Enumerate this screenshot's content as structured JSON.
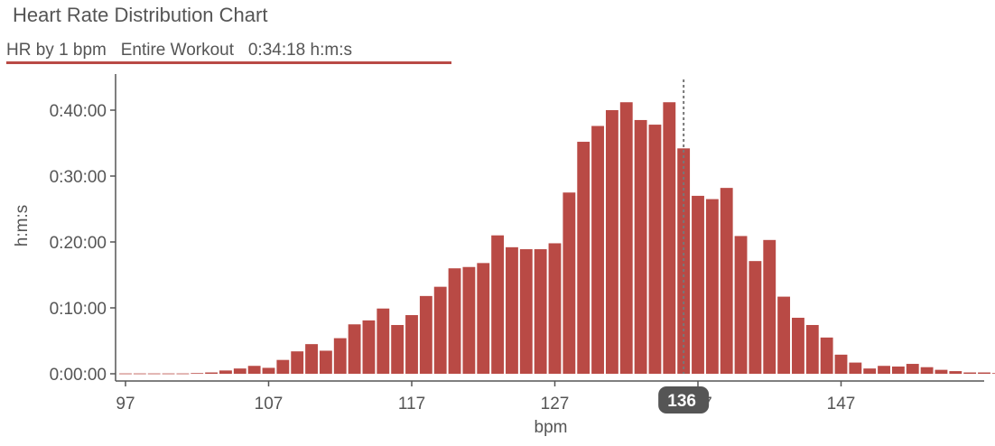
{
  "title": "Heart Rate Distribution Chart",
  "subtitle": "HR by 1 bpm   Entire Workout   0:34:18 h:m:s",
  "colors": {
    "bar": "#b94a45",
    "underline": "#b94a45",
    "axis": "#555555",
    "cursor_badge": "#555555"
  },
  "chart_data": {
    "type": "bar",
    "xlabel": "bpm",
    "ylabel": "h:m:s",
    "x_ticks": [
      "97",
      "107",
      "117",
      "127",
      "147"
    ],
    "y_ticks": [
      "0:00:00",
      "0:10:00",
      "0:20:00",
      "0:30:00",
      "0:40:00"
    ],
    "ylim_minutes": [
      0,
      45
    ],
    "bin_width_bpm": 1,
    "categories": [
      97,
      98,
      99,
      100,
      101,
      102,
      103,
      104,
      105,
      106,
      107,
      108,
      109,
      110,
      111,
      112,
      113,
      114,
      115,
      116,
      117,
      118,
      119,
      120,
      121,
      122,
      123,
      124,
      125,
      126,
      127,
      128,
      129,
      130,
      131,
      132,
      133,
      134,
      135,
      136,
      137,
      138,
      139,
      140,
      141,
      142,
      143,
      144,
      145,
      146,
      147,
      148,
      149,
      150,
      151,
      152,
      153,
      154,
      155,
      156,
      157,
      158
    ],
    "values_minutes": [
      0.05,
      0.05,
      0.05,
      0.05,
      0.05,
      0.1,
      0.2,
      0.5,
      0.8,
      1.2,
      0.9,
      2.1,
      3.4,
      4.5,
      3.5,
      5.4,
      7.5,
      8.1,
      9.9,
      7.4,
      8.9,
      11.8,
      13.2,
      16.0,
      16.2,
      16.8,
      21.0,
      19.2,
      18.9,
      18.9,
      19.8,
      27.5,
      35.2,
      37.6,
      40.0,
      41.2,
      38.5,
      37.8,
      41.2,
      34.2,
      27.0,
      26.5,
      28.2,
      20.9,
      17.1,
      20.3,
      11.7,
      8.5,
      7.4,
      5.5,
      2.9,
      1.7,
      0.8,
      1.2,
      1.1,
      1.5,
      1.0,
      0.6,
      0.4,
      0.2,
      0.2,
      0.1
    ],
    "cursor": {
      "label": "136",
      "bpm": 136
    }
  }
}
